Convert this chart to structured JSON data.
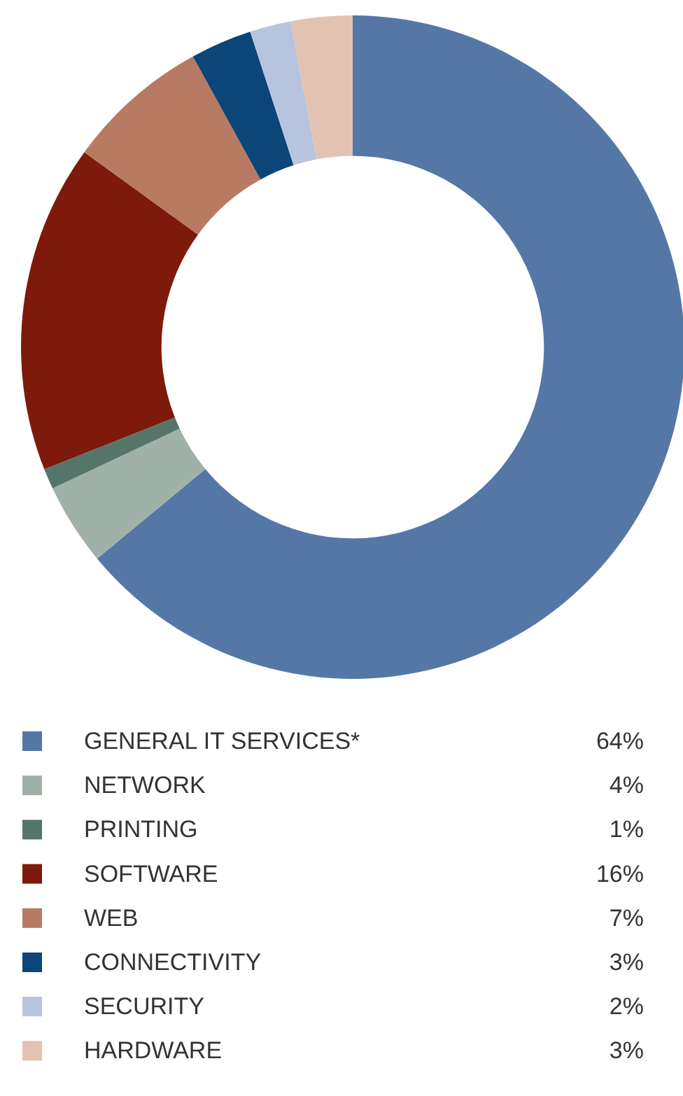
{
  "chart_data": {
    "type": "donut",
    "categories": [
      "GENERAL IT SERVICES*",
      "NETWORK",
      "PRINTING",
      "SOFTWARE",
      "WEB",
      "CONNECTIVITY",
      "SECURITY",
      "HARDWARE"
    ],
    "values": [
      64,
      4,
      1,
      16,
      7,
      3,
      2,
      3
    ],
    "colors": [
      "#5577a6",
      "#a0b1a8",
      "#56756a",
      "#7d1a0b",
      "#b87a62",
      "#0c4577",
      "#b8c4de",
      "#e2c3b1"
    ],
    "value_labels": [
      "64%",
      "4%",
      "1%",
      "16%",
      "7%",
      "3%",
      "2%",
      "3%"
    ],
    "legend": "bottom"
  }
}
